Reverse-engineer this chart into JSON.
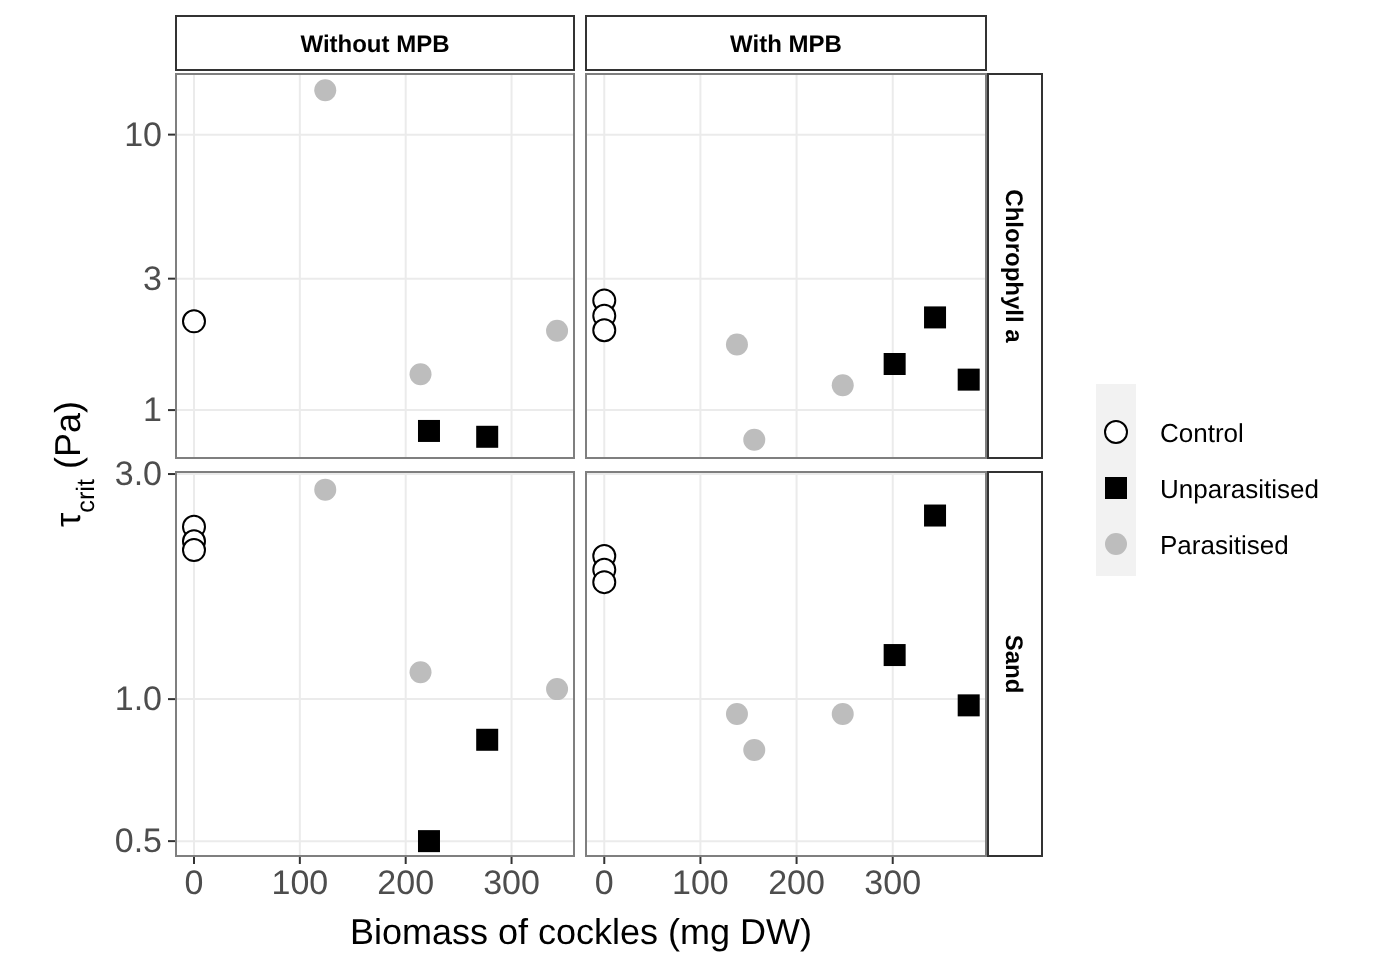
{
  "chart_data": [
    {
      "type": "scatter",
      "title": "Without MPB",
      "ylabel": "τ$_{crit}$ (Pa)",
      "xlim": [
        -17,
        359
      ],
      "xticks": [
        0,
        100,
        200,
        300
      ],
      "ylim": [
        0.67,
        16.6
      ],
      "yticks": [
        1,
        3,
        10
      ],
      "log": "y",
      "grid": true,
      "tick_labels": "y",
      "legend": "right",
      "series": [
        {
          "name": "Control",
          "color": "#ffffff",
          "marker": "circle",
          "x": [
            0
          ],
          "values": [
            2.1
          ]
        },
        {
          "name": "Unparasitised",
          "color": "#000000",
          "marker": "square",
          "x": [
            222,
            277
          ],
          "values": [
            0.84,
            0.8
          ]
        },
        {
          "name": "Parasitised",
          "color": "#bdbdbd",
          "marker": "circle",
          "x": [
            124,
            214,
            343
          ],
          "values": [
            14.5,
            1.35,
            1.94
          ]
        }
      ]
    },
    {
      "type": "scatter",
      "title": "With MPB",
      "y2label": "Chlorophyll a",
      "xlim": [
        -19,
        397
      ],
      "xticks": [
        0,
        100,
        200,
        300
      ],
      "ylim": [
        0.67,
        16.6
      ],
      "yticks": [
        1,
        3,
        10
      ],
      "log": "y",
      "grid": true,
      "tick_labels": false,
      "series": [
        {
          "color": "#ffffff",
          "marker": "circle",
          "x": [
            0,
            0,
            0
          ],
          "values": [
            2.5,
            2.2,
            1.95
          ]
        },
        {
          "color": "#000000",
          "marker": "square",
          "x": [
            302,
            344,
            379
          ],
          "values": [
            1.47,
            2.17,
            1.29
          ]
        },
        {
          "color": "#bdbdbd",
          "marker": "circle",
          "x": [
            138,
            156,
            248
          ],
          "values": [
            1.73,
            0.78,
            1.23
          ]
        }
      ]
    },
    {
      "type": "scatter",
      "xlabel": "Biomass of cockles (mg DW)",
      "xlim": [
        -17,
        359
      ],
      "xticks": [
        0,
        100,
        200,
        300
      ],
      "ylim": [
        0.465,
        3.03
      ],
      "yticks": [
        {
          "value": 0.5,
          "label": "0.5"
        },
        {
          "value": 1,
          "label": "1.0"
        },
        {
          "value": 3,
          "label": "3.0"
        }
      ],
      "log": "y",
      "grid": true,
      "series": [
        {
          "color": "#ffffff",
          "marker": "circle",
          "x": [
            0,
            0,
            0
          ],
          "values": [
            2.32,
            2.16,
            2.07
          ]
        },
        {
          "color": "#000000",
          "marker": "square",
          "x": [
            222,
            277
          ],
          "values": [
            0.5,
            0.82
          ]
        },
        {
          "color": "#bdbdbd",
          "marker": "circle",
          "x": [
            124,
            214,
            343
          ],
          "values": [
            2.78,
            1.14,
            1.05
          ]
        }
      ]
    },
    {
      "type": "scatter",
      "y2label": "Sand",
      "xlim": [
        -19,
        397
      ],
      "xticks": [
        0,
        100,
        200,
        300
      ],
      "ylim": [
        0.465,
        3.03
      ],
      "yticks": [
        0.5,
        1,
        3
      ],
      "log": "y",
      "grid": true,
      "tick_labels": "x",
      "series": [
        {
          "color": "#ffffff",
          "marker": "circle",
          "x": [
            0,
            0,
            0
          ],
          "values": [
            2.01,
            1.88,
            1.77
          ]
        },
        {
          "color": "#000000",
          "marker": "square",
          "x": [
            302,
            344,
            379
          ],
          "values": [
            1.24,
            2.45,
            0.97
          ]
        },
        {
          "color": "#bdbdbd",
          "marker": "circle",
          "x": [
            138,
            156,
            248
          ],
          "values": [
            0.93,
            0.78,
            0.93
          ]
        }
      ]
    }
  ]
}
